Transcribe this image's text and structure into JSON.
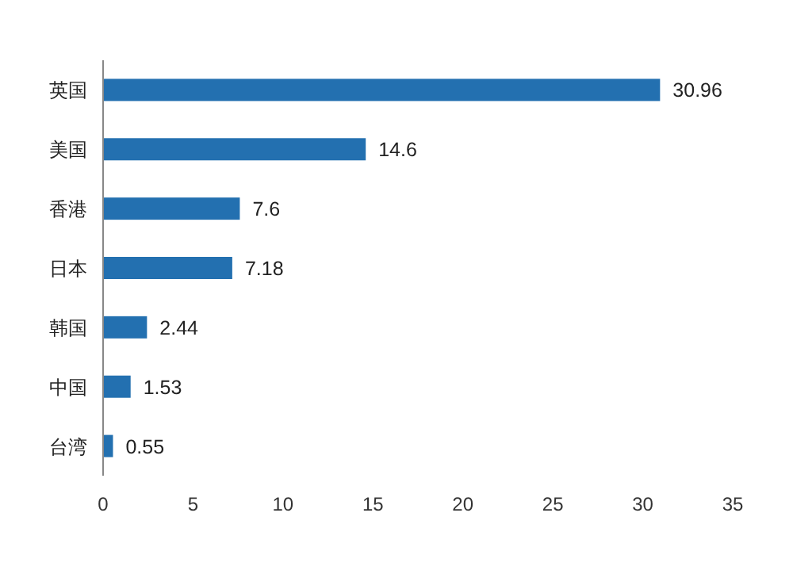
{
  "chart_data": {
    "type": "bar",
    "orientation": "horizontal",
    "categories": [
      "英国",
      "美国",
      "香港",
      "日本",
      "韩国",
      "中国",
      "台湾"
    ],
    "values": [
      30.96,
      14.6,
      7.6,
      7.18,
      2.44,
      1.53,
      0.55
    ],
    "color": "#2370b0",
    "xlim": [
      0,
      35
    ],
    "xticks": [
      0,
      5,
      10,
      15,
      20,
      25,
      30,
      35
    ],
    "data_labels": true,
    "grid": false
  }
}
